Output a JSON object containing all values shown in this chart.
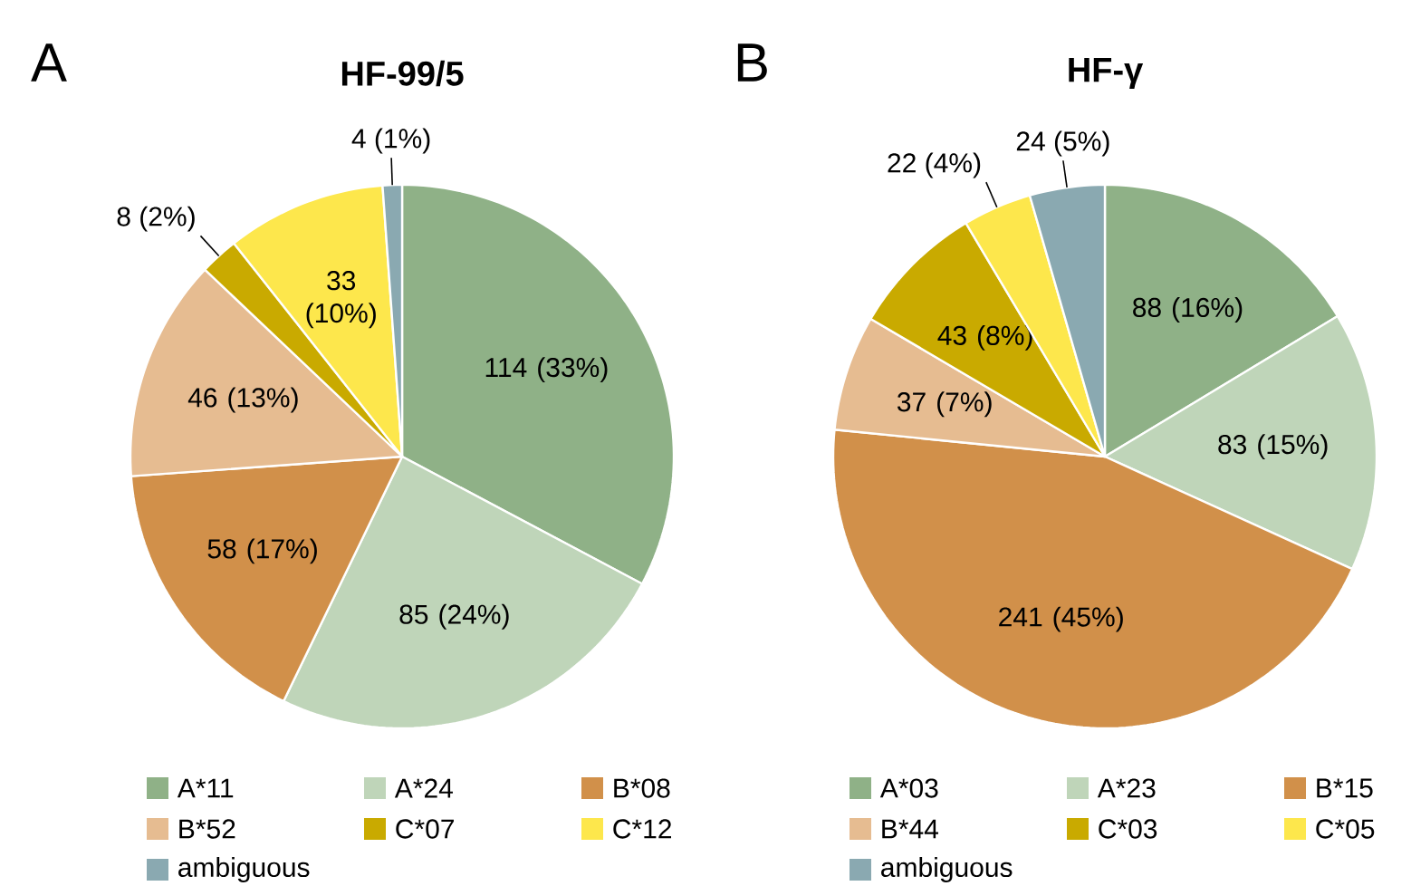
{
  "chart_data": [
    {
      "type": "pie",
      "title": "HF-99/5",
      "annotations": [
        "A"
      ],
      "categories": [
        "A*11",
        "A*24",
        "B*08",
        "B*52",
        "C*07",
        "C*12",
        "ambiguous"
      ],
      "values": [
        114,
        85,
        58,
        46,
        8,
        33,
        4
      ],
      "value_labels": [
        "114 (33%)",
        "85 (24%)",
        "58 (17%)",
        "46 (13%)",
        "8 (2%)",
        "33 (10%)",
        "4 (1%)"
      ],
      "colors": [
        "#8fb187",
        "#bfd5b9",
        "#d1904a",
        "#e6bc91",
        "#c9aa00",
        "#fde74c",
        "#8aa9b1"
      ],
      "legend": "bottom"
    },
    {
      "type": "pie",
      "title": "HF-γ",
      "annotations": [
        "B"
      ],
      "categories": [
        "A*03",
        "A*23",
        "B*15",
        "B*44",
        "C*03",
        "C*05",
        "ambiguous"
      ],
      "values": [
        88,
        83,
        241,
        37,
        43,
        22,
        24
      ],
      "value_labels": [
        "88 (16%)",
        "83 (15%)",
        "241 (45%)",
        "37 (7%)",
        "43 (8%)",
        "22 (4%)",
        "24 (5%)"
      ],
      "colors": [
        "#8fb187",
        "#bfd5b9",
        "#d1904a",
        "#e6bc91",
        "#c9aa00",
        "#fde74c",
        "#8aa9b1"
      ],
      "legend": "bottom"
    }
  ]
}
